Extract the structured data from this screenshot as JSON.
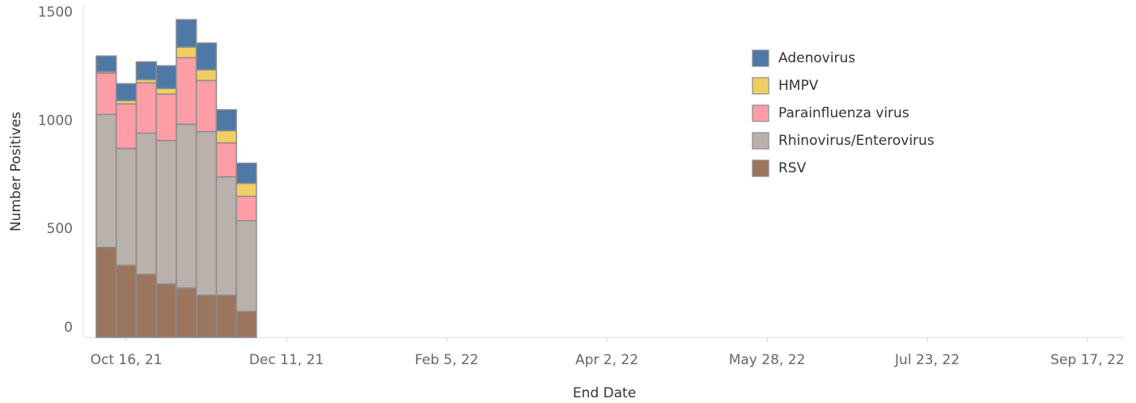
{
  "chart_data": {
    "type": "stacked_bar",
    "x_label": "End Date",
    "y_label": "Number Positives",
    "x": [
      "2021-10-09",
      "2021-10-16",
      "2021-10-23",
      "2021-10-30",
      "2021-11-06",
      "2021-11-13",
      "2021-11-20",
      "2021-11-27"
    ],
    "series": [
      {
        "name": "Adenovirus",
        "color": "#4e79a7",
        "values": [
          72,
          78,
          82,
          105,
          127,
          124,
          97,
          93
        ]
      },
      {
        "name": "HMPV",
        "color": "#f1ce63",
        "values": [
          7,
          15,
          15,
          26,
          49,
          49,
          56,
          60
        ]
      },
      {
        "name": "Parainfluenza virus",
        "color": "#ff9da7",
        "values": [
          191,
          206,
          232,
          214,
          307,
          236,
          157,
          113
        ]
      },
      {
        "name": "Rhinovirus/Enterovirus",
        "color": "#bab0ac",
        "values": [
          614,
          540,
          652,
          663,
          757,
          756,
          547,
          419
        ]
      },
      {
        "name": "RSV",
        "color": "#9c755f",
        "values": [
          416,
          333,
          292,
          247,
          228,
          195,
          195,
          120
        ]
      }
    ],
    "xlim": [
      "2021-10-01",
      "2022-09-30"
    ],
    "xticks": [
      {
        "value": "2021-10-16",
        "label": "Oct 16, 21"
      },
      {
        "value": "2021-12-11",
        "label": "Dec 11, 21"
      },
      {
        "value": "2022-02-05",
        "label": "Feb 5, 22"
      },
      {
        "value": "2022-04-02",
        "label": "Apr 2, 22"
      },
      {
        "value": "2022-05-28",
        "label": "May 28, 22"
      },
      {
        "value": "2022-07-23",
        "label": "Jul 23, 22"
      },
      {
        "value": "2022-09-17",
        "label": "Sep 17, 22"
      }
    ],
    "ylim": [
      0,
      1540
    ],
    "yticks": [
      0,
      500,
      1000,
      1500
    ],
    "grid": false,
    "legend": "top-right"
  }
}
